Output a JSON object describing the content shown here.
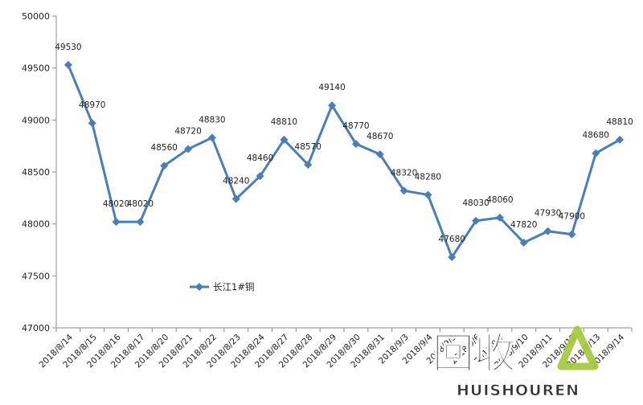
{
  "chart_data": {
    "type": "line",
    "categories": [
      "2018/8/14",
      "2018/8/15",
      "2018/8/16",
      "2018/8/17",
      "2018/8/20",
      "2018/8/21",
      "2018/8/22",
      "2018/8/23",
      "2018/8/24",
      "2018/8/27",
      "2018/8/28",
      "2018/8/29",
      "2018/8/30",
      "2018/8/31",
      "2018/9/3",
      "2018/9/4",
      "2018/9/5",
      "2018/9/6",
      "2018/9/7",
      "2018/9/10",
      "2018/9/11",
      "2018/9/12",
      "2018/9/13",
      "2018/9/14"
    ],
    "series": [
      {
        "name": "长江1#铜",
        "values": [
          49530,
          48970,
          48020,
          48020,
          48560,
          48720,
          48830,
          48240,
          48460,
          48810,
          48570,
          49140,
          48770,
          48670,
          48320,
          48280,
          47680,
          48030,
          48060,
          47820,
          47930,
          47900,
          48680,
          48810
        ],
        "color": "#4a7ebb"
      }
    ],
    "ylim": [
      47000,
      50000
    ],
    "yticks": [
      47000,
      47500,
      48000,
      48500,
      49000,
      49500,
      50000
    ],
    "grid": false,
    "legend": "center-left",
    "data_labels": true
  },
  "watermark": {
    "text_cn": "回收",
    "text_en": "HUISHOUREN",
    "color": "#a6c93a"
  }
}
